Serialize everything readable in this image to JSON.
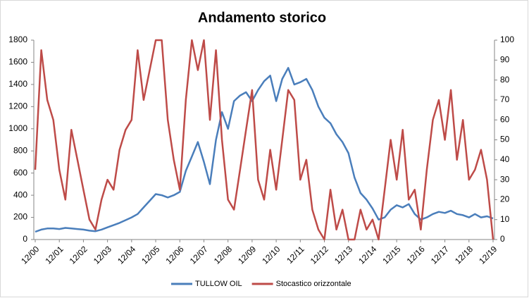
{
  "chart_data": {
    "type": "line",
    "title": "Andamento storico",
    "categories": [
      "12/00",
      null,
      null,
      null,
      "12/01",
      null,
      null,
      null,
      "12/02",
      null,
      null,
      null,
      "12/03",
      null,
      null,
      null,
      "12/04",
      null,
      null,
      null,
      "12/05",
      null,
      null,
      null,
      "12/06",
      null,
      null,
      null,
      "12/07",
      null,
      null,
      null,
      "12/08",
      null,
      null,
      null,
      "12/09",
      null,
      null,
      null,
      "12/10",
      null,
      null,
      null,
      "12/11",
      null,
      null,
      null,
      "12/12",
      null,
      null,
      null,
      "12/13",
      null,
      null,
      null,
      "12/14",
      null,
      null,
      null,
      "12/15",
      null,
      null,
      null,
      "12/16",
      null,
      null,
      null,
      "12/17",
      null,
      null,
      null,
      "12/18",
      null,
      null,
      null,
      "12/19"
    ],
    "series": [
      {
        "name": "TULLOW OIL",
        "color": "#4a7ebb",
        "values": [
          70,
          90,
          100,
          100,
          95,
          105,
          100,
          95,
          90,
          80,
          75,
          90,
          110,
          130,
          150,
          175,
          200,
          230,
          290,
          350,
          410,
          400,
          380,
          400,
          430,
          620,
          750,
          880,
          700,
          500,
          900,
          1150,
          1000,
          1250,
          1300,
          1330,
          1250,
          1350,
          1430,
          1480,
          1250,
          1450,
          1550,
          1400,
          1420,
          1450,
          1350,
          1200,
          1100,
          1050,
          950,
          880,
          780,
          560,
          420,
          360,
          280,
          180,
          200,
          270,
          310,
          290,
          320,
          230,
          180,
          200,
          230,
          250,
          240,
          260,
          230,
          220,
          200,
          230,
          200,
          210,
          190
        ]
      },
      {
        "name": "Stocastico orizzontale",
        "color": "#be4b48",
        "axis": "y2",
        "values": [
          35,
          95,
          70,
          60,
          35,
          20,
          55,
          40,
          25,
          10,
          5,
          20,
          30,
          25,
          45,
          55,
          60,
          95,
          70,
          85,
          100,
          100,
          60,
          40,
          25,
          70,
          100,
          85,
          100,
          60,
          95,
          50,
          20,
          15,
          35,
          55,
          75,
          30,
          20,
          45,
          25,
          50,
          75,
          70,
          30,
          40,
          15,
          5,
          0,
          25,
          5,
          15,
          0,
          0,
          15,
          5,
          10,
          0,
          25,
          50,
          30,
          55,
          20,
          25,
          5,
          35,
          60,
          70,
          50,
          75,
          40,
          60,
          30,
          35,
          45,
          30,
          0
        ]
      }
    ],
    "ylim": [
      0,
      1800
    ],
    "yticks": [
      0,
      200,
      400,
      600,
      800,
      1000,
      1200,
      1400,
      1600,
      1800
    ],
    "y2lim": [
      0,
      100
    ],
    "y2ticks": [
      0,
      10,
      20,
      30,
      40,
      50,
      60,
      70,
      80,
      90,
      100
    ]
  }
}
